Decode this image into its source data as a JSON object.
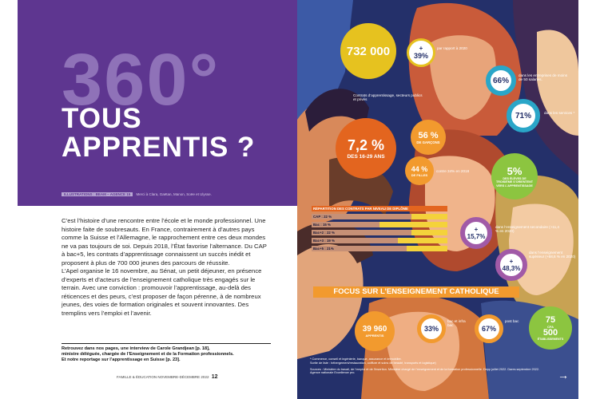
{
  "left_page": {
    "big_title": "360°",
    "title_line1": "TOUS",
    "title_line2": "APPRENTIS ?",
    "credits_tag": "ILLUSTRATIONS : BEAM – AGENCE 15",
    "credits_text": "Merci à Clara, Gaëtan, Manon, Soëe et Ulysse.",
    "intro_paragraph_1": "C’est l’histoire d’une rencontre entre l’école et le monde professionnel. Une histoire faite de soubresauts. En France, contrairement à d’autres pays comme la Suisse et l’Allemagne, le rapprochement entre ces deux mondes ne va pas toujours de soi. Depuis 2018, l’État favorise l’alternance. Du CAP à bac+5, les contrats d’apprentissage connaissent un succès inédit et proposent à plus de 700 000 jeunes des parcours de réussite.",
    "intro_paragraph_2": "L’Apel organise le 16 novembre, au Sénat, un petit déjeuner, en présence d’experts et d’acteurs de l’enseignement catholique très engagés sur le terrain. Avec une conviction : promouvoir l’apprentissage, au-delà des réticences et des peurs, c’est proposer de façon pérenne, à de nombreux jeunes, des voies de formation originales et souvent innovantes. Des tremplins vers l’emploi et l’avenir.",
    "refs_line_1": "Retrouvez dans nos pages, une interview de Carole Grandjean [p. 18],",
    "refs_line_2": "ministre déléguée, chargée de l’Enseignement et de la Formation professionnels.",
    "refs_line_3": "Et notre reportage sur l’apprentissage en Suisse [p. 23].",
    "folio_text": "FAMILLE & ÉDUCATION NOVEMBRE-DÉCEMBRE 2022",
    "folio_page": "12"
  },
  "right_page": {
    "stat_main_value": "732 000",
    "stat_main_caption": "Contrats d’apprentissage, secteurs publics et privés",
    "stat_growth_value": "39%",
    "stat_growth_caption": "par rapport à 2020",
    "stat_small_firms_value": "66%",
    "stat_small_firms_caption": "dans les entreprises de moins de 50 salariés.",
    "stat_services_value": "71%",
    "stat_services_caption": "dans les services *",
    "stat_age_value": "7,2 %",
    "stat_age_caption": "DES 16-29 ANS",
    "stat_boys_value": "56 %",
    "stat_boys_caption": "DE GARÇONS",
    "stat_girls_value": "44 %",
    "stat_girls_caption": "DE FILLES",
    "stat_2018_caption": "contre 34% en 2018",
    "stat_third_value": "5%",
    "stat_third_caption": "DES ÉLÈVES DE TROISIÈME S’ORIENTENT VERS L’APPRENTISSAGE",
    "bars_heading": "RÉPARTITION DES CONTRATS PAR NIVEAU DE DIPLÔME",
    "stat_secondary_value": "15,7%",
    "stat_secondary_caption": "dans l’enseignement secondaire (+11,4 % en 2020)",
    "stat_higher_value": "48,3%",
    "stat_higher_caption": "dans l’enseignement supérieur (+58,6 % en 2020)",
    "focus_title": "FOCUS SUR L’ENSEIGNEMENT CATHOLIQUE",
    "cath_apprentis_value": "39 960",
    "cath_apprentis_caption": "APPRENTIS",
    "cath_infrabac_value": "33%",
    "cath_infrabac_caption": "bac et infra bac",
    "cath_postbac_value": "67%",
    "cath_postbac_caption": "post bac",
    "cath_cfa_value": "75",
    "cath_cfa_caption": "CFA",
    "cath_etab_value": "500",
    "cath_etab_caption": "ÉTABLISSEMENTS",
    "footnote_1": "* Commerce, conseil et ingénierie, banque, assurance et immobilier.",
    "footnote_2": "Sortie de liste : hébergement/restauration, coiffure et soins de beauté, transports et logistique)",
    "sources": "Sources : Ministère du travail, de l’emploi et de l’insertion. Ministère chargé de l’enseignement et de la formation professionnelle. Depp juillet 2022. Dares septembre 2022. Agence nationale Excellence pro.",
    "arrow": "→"
  },
  "chart_data": {
    "type": "bar",
    "title": "RÉPARTITION DES CONTRATS PAR NIVEAU DE DIPLÔME",
    "categories": [
      "CAP",
      "Bac",
      "Bac+2",
      "Bac+3",
      "Bac+5"
    ],
    "labels": [
      "CAP : 22 %",
      "Bac : 15 %",
      "Bac+2 : 22 %",
      "Bac+3 : 19 %",
      "Bac+5 : 21%"
    ],
    "values": [
      22,
      15,
      22,
      19,
      21
    ],
    "ylim": [
      0,
      30
    ]
  },
  "colors": {
    "purple": "#5e3690",
    "light_purple": "#8f72b8",
    "navy": "#24306a",
    "yellow": "#e6c21f",
    "orange": "#e3651f",
    "light_orange": "#f29a2e",
    "teal": "#2aa6c8",
    "green": "#8cc540"
  }
}
